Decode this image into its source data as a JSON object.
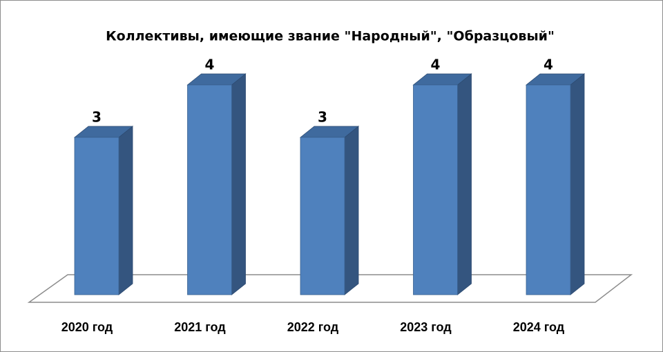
{
  "chart_data": {
    "type": "bar3d",
    "title": "Коллективы, имеющие звание \"Народный\", \"Образцовый\"",
    "categories": [
      "2020 год",
      "2021 год",
      "2022 год",
      "2023 год",
      "2024 год"
    ],
    "values": [
      3,
      4,
      3,
      4,
      4
    ],
    "color": "#4f81bd"
  }
}
